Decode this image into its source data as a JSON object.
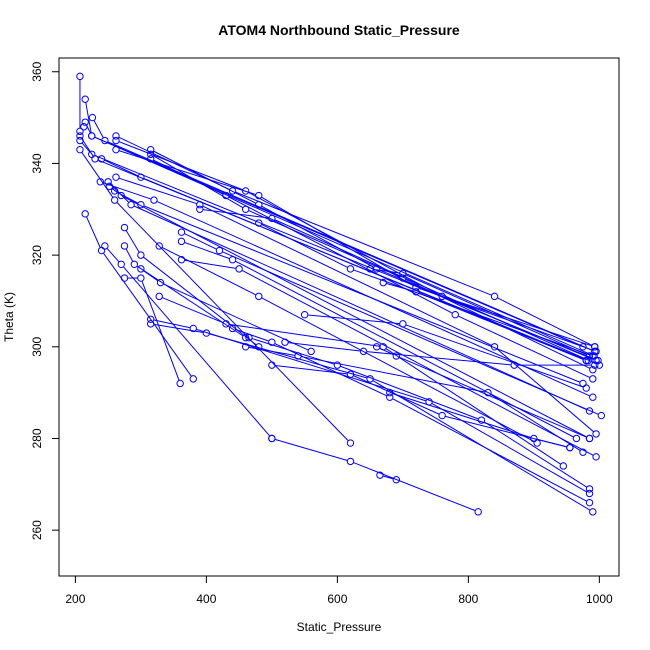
{
  "chart_data": {
    "type": "scatter",
    "title": "ATOM4 Northbound Static_Pressure",
    "xlabel": "Static_Pressure",
    "ylabel": "Theta (K)",
    "xlim": [
      175,
      1030
    ],
    "ylim": [
      250,
      363
    ],
    "x_ticks": [
      {
        "value": 200,
        "label": "200"
      },
      {
        "value": 400,
        "label": "400"
      },
      {
        "value": 600,
        "label": "600"
      },
      {
        "value": 800,
        "label": "800"
      },
      {
        "value": 1000,
        "label": "1000"
      }
    ],
    "y_ticks": [
      {
        "value": 260,
        "label": "260"
      },
      {
        "value": 280,
        "label": "280"
      },
      {
        "value": 300,
        "label": "300"
      },
      {
        "value": 320,
        "label": "320"
      },
      {
        "value": 340,
        "label": "340"
      },
      {
        "value": 360,
        "label": "360"
      }
    ],
    "grid": false,
    "legend": "none",
    "series_color": "#0000ff",
    "profiles": [
      [
        [
          207,
          359
        ],
        [
          207,
          347
        ],
        [
          213,
          348
        ]
      ],
      [
        [
          215,
          354
        ],
        [
          225,
          346
        ],
        [
          975,
          300
        ]
      ],
      [
        [
          226,
          350
        ],
        [
          245,
          345
        ],
        [
          993,
          299
        ]
      ],
      [
        [
          215,
          349
        ],
        [
          225,
          346
        ],
        [
          992,
          298
        ]
      ],
      [
        [
          207,
          346
        ],
        [
          230,
          341
        ],
        [
          983,
          297
        ]
      ],
      [
        [
          207,
          345
        ],
        [
          225,
          342
        ],
        [
          998,
          297
        ]
      ],
      [
        [
          207,
          343
        ],
        [
          260,
          332
        ],
        [
          620,
          279
        ]
      ],
      [
        [
          262,
          346
        ],
        [
          440,
          334
        ],
        [
          840,
          311
        ],
        [
          993,
          300
        ]
      ],
      [
        [
          262,
          345
        ],
        [
          460,
          334
        ],
        [
          760,
          311
        ],
        [
          993,
          300
        ]
      ],
      [
        [
          262,
          343
        ],
        [
          480,
          333
        ],
        [
          720,
          313
        ],
        [
          995,
          299
        ]
      ],
      [
        [
          315,
          343
        ],
        [
          480,
          331
        ],
        [
          660,
          317
        ],
        [
          995,
          297
        ]
      ],
      [
        [
          315,
          342
        ],
        [
          460,
          330
        ],
        [
          700,
          315
        ],
        [
          990,
          295
        ]
      ],
      [
        [
          315,
          341
        ],
        [
          430,
          333
        ],
        [
          780,
          307
        ],
        [
          990,
          293
        ]
      ],
      [
        [
          240,
          341
        ],
        [
          300,
          337
        ],
        [
          980,
          297
        ]
      ],
      [
        [
          262,
          337
        ],
        [
          390,
          331
        ],
        [
          840,
          300
        ],
        [
          995,
          281
        ]
      ],
      [
        [
          238,
          336
        ],
        [
          320,
          332
        ],
        [
          990,
          289
        ]
      ],
      [
        [
          250,
          336
        ],
        [
          285,
          331
        ],
        [
          985,
          286
        ]
      ],
      [
        [
          252,
          335
        ],
        [
          270,
          333
        ],
        [
          985,
          280
        ]
      ],
      [
        [
          260,
          334
        ],
        [
          300,
          331
        ],
        [
          975,
          292
        ]
      ],
      [
        [
          215,
          329
        ],
        [
          240,
          321
        ],
        [
          380,
          293
        ]
      ],
      [
        [
          245,
          322
        ],
        [
          270,
          318
        ],
        [
          500,
          280
        ]
      ],
      [
        [
          275,
          326
        ],
        [
          300,
          320
        ],
        [
          480,
          300
        ]
      ],
      [
        [
          275,
          322
        ],
        [
          290,
          318
        ],
        [
          460,
          302
        ]
      ],
      [
        [
          275,
          315
        ],
        [
          300,
          315
        ],
        [
          360,
          292
        ]
      ],
      [
        [
          300,
          317
        ],
        [
          330,
          314
        ],
        [
          560,
          299
        ]
      ],
      [
        [
          328,
          322
        ],
        [
          480,
          311
        ],
        [
          905,
          279
        ]
      ],
      [
        [
          362,
          325
        ],
        [
          420,
          321
        ],
        [
          1003,
          285
        ]
      ],
      [
        [
          362,
          323
        ],
        [
          440,
          319
        ],
        [
          965,
          280
        ]
      ],
      [
        [
          362,
          319
        ],
        [
          450,
          317
        ],
        [
          995,
          276
        ]
      ],
      [
        [
          328,
          311
        ],
        [
          430,
          305
        ],
        [
          670,
          300
        ],
        [
          945,
          274
        ]
      ],
      [
        [
          315,
          306
        ],
        [
          380,
          304
        ],
        [
          740,
          288
        ],
        [
          985,
          268
        ]
      ],
      [
        [
          315,
          305
        ],
        [
          400,
          303
        ],
        [
          650,
          293
        ],
        [
          990,
          264
        ]
      ],
      [
        [
          440,
          304
        ],
        [
          500,
          301
        ],
        [
          680,
          289
        ],
        [
          985,
          266
        ]
      ],
      [
        [
          465,
          302
        ],
        [
          600,
          296
        ],
        [
          820,
          284
        ],
        [
          985,
          269
        ]
      ],
      [
        [
          460,
          300
        ],
        [
          540,
          298
        ],
        [
          830,
          290
        ],
        [
          975,
          277
        ]
      ],
      [
        [
          500,
          296
        ],
        [
          620,
          294
        ],
        [
          760,
          285
        ],
        [
          955,
          278
        ]
      ],
      [
        [
          500,
          280
        ],
        [
          620,
          275
        ],
        [
          815,
          264
        ]
      ],
      [
        [
          550,
          307
        ],
        [
          700,
          305
        ],
        [
          980,
          291
        ]
      ],
      [
        [
          520,
          301
        ],
        [
          640,
          299
        ],
        [
          870,
          296
        ],
        [
          993,
          296
        ]
      ],
      [
        [
          660,
          300
        ],
        [
          690,
          298
        ],
        [
          985,
          280
        ]
      ],
      [
        [
          665,
          272
        ],
        [
          690,
          271
        ]
      ],
      [
        [
          680,
          290
        ],
        [
          900,
          280
        ],
        [
          955,
          278
        ]
      ],
      [
        [
          390,
          330
        ],
        [
          500,
          328
        ],
        [
          1000,
          296
        ]
      ],
      [
        [
          480,
          327
        ],
        [
          620,
          317
        ],
        [
          990,
          298
        ]
      ],
      [
        [
          650,
          317
        ],
        [
          700,
          316
        ],
        [
          985,
          298
        ]
      ],
      [
        [
          670,
          314
        ],
        [
          720,
          312
        ],
        [
          980,
          297
        ]
      ]
    ]
  }
}
